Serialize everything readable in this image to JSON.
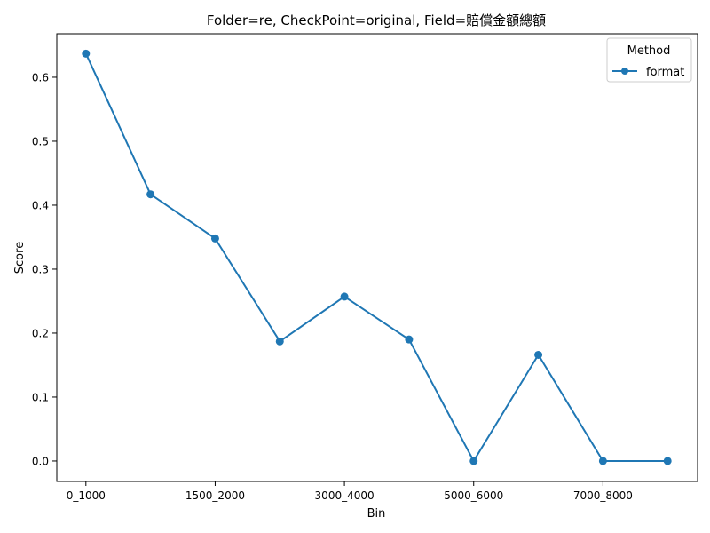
{
  "chart_data": {
    "type": "line",
    "title": "Folder=re, CheckPoint=original, Field=賠償金額總額",
    "xlabel": "Bin",
    "ylabel": "Score",
    "x_tick_labels": [
      "0_1000",
      "1500_2000",
      "3000_4000",
      "5000_6000",
      "7000_8000"
    ],
    "categories": [
      "0_1000",
      "",
      "1500_2000",
      "",
      "3000_4000",
      "",
      "5000_6000",
      "",
      "7000_8000",
      ""
    ],
    "y_ticks": [
      "0.0",
      "0.1",
      "0.2",
      "0.3",
      "0.4",
      "0.5",
      "0.6"
    ],
    "ylim": [
      -0.032,
      0.668
    ],
    "grid": false,
    "legend": {
      "title": "Method",
      "placement": "top-right"
    },
    "series": [
      {
        "name": "format",
        "color": "#1f77b4",
        "values": [
          0.637,
          0.417,
          0.348,
          0.187,
          0.257,
          0.19,
          0.0,
          0.166,
          0.0,
          0.0
        ]
      }
    ]
  }
}
